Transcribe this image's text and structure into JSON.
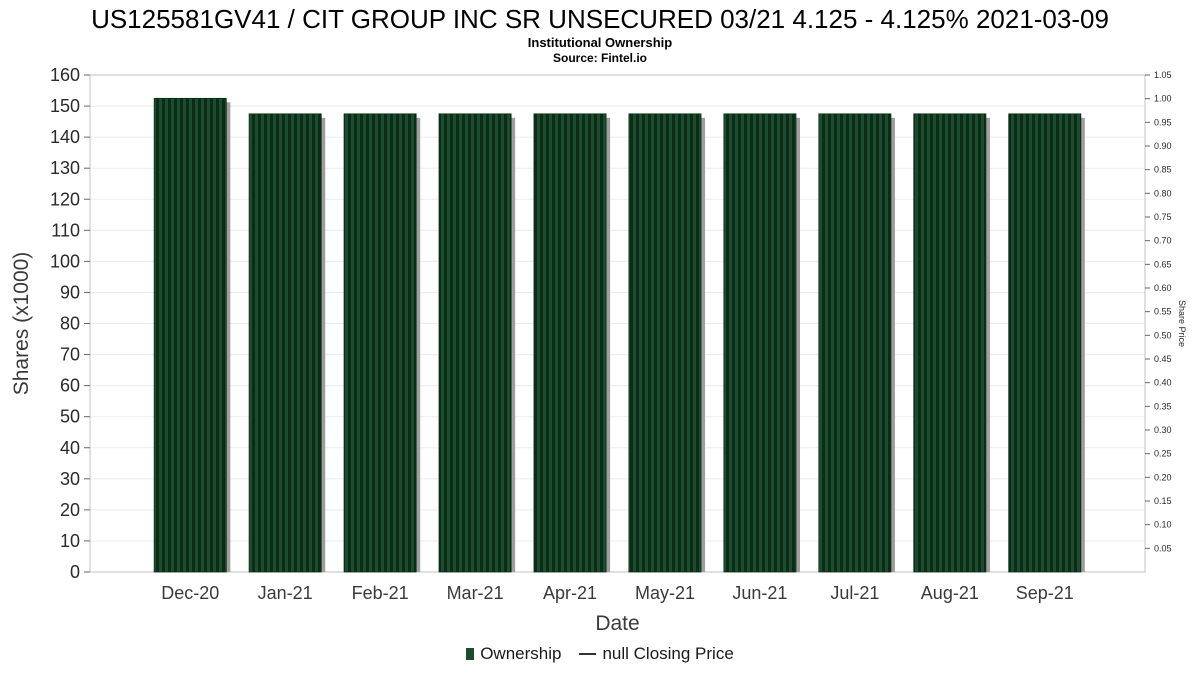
{
  "header": {
    "title": "US125581GV41 / CIT GROUP INC SR UNSECURED 03/21 4.125 - 4.125% 2021-03-09",
    "subtitle": "Institutional Ownership",
    "source": "Source: Fintel.io"
  },
  "legend": {
    "ownership_label": "Ownership",
    "price_label": "null Closing Price"
  },
  "chart_data": {
    "type": "bar",
    "title": "Institutional Ownership",
    "subtitle": "Source: Fintel.io",
    "categories": [
      "Dec-20",
      "Jan-21",
      "Feb-21",
      "Mar-21",
      "Apr-21",
      "May-21",
      "Jun-21",
      "Jul-21",
      "Aug-21",
      "Sep-21"
    ],
    "series": [
      {
        "name": "Ownership",
        "values": [
          152.5,
          147.5,
          147.5,
          147.5,
          147.5,
          147.5,
          147.5,
          147.5,
          147.5,
          147.5
        ]
      }
    ],
    "xlabel": "Date",
    "ylabel": "Shares (x1000)",
    "ylabel_right": "Share Price",
    "ylim": [
      0,
      160
    ],
    "y_ticks": [
      0,
      10,
      20,
      30,
      40,
      50,
      60,
      70,
      80,
      90,
      100,
      110,
      120,
      130,
      140,
      150,
      160
    ],
    "y2lim": [
      0,
      1.05
    ],
    "y2_ticks": [
      "0.05",
      "0.10",
      "0.15",
      "0.20",
      "0.25",
      "0.30",
      "0.35",
      "0.40",
      "0.45",
      "0.50",
      "0.55",
      "0.60",
      "0.65",
      "0.70",
      "0.75",
      "0.80",
      "0.85",
      "0.90",
      "0.95",
      "1.00",
      "1.05"
    ],
    "grid": true,
    "legend_position": "bottom",
    "colors": {
      "bar": "#1b4d2e",
      "bar_stripe": "#0d2c18",
      "shadow": "#9e9e9e",
      "grid": "#ebebeb",
      "plot_border": "#c0c0c0",
      "price_line": "#333333"
    }
  }
}
